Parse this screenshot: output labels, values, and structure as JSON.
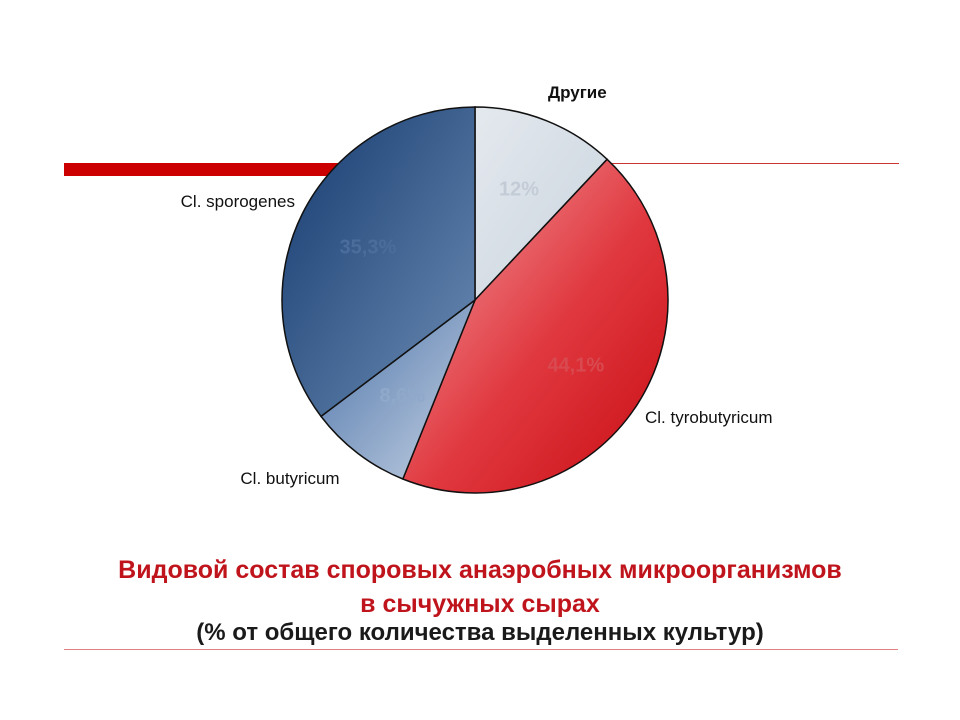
{
  "chart_data": {
    "type": "pie",
    "categories": [
      "Другие",
      "Cl. tyrobutyricum",
      "Cl. butyricum",
      "Cl. sporogenes"
    ],
    "values": [
      12,
      44.1,
      8.6,
      35.3
    ],
    "value_labels": [
      "12%",
      "44,1%",
      "8,6%",
      "35,3%"
    ],
    "title": "Видовой состав споровых анаэробных микроорганизмов",
    "colors": [
      "#d5dde6",
      "#d9202a",
      "#6d8fbd",
      "#2a4f82"
    ]
  },
  "caption": {
    "line1": "Видовой состав споровых анаэробных микроорганизмов",
    "line2": "в сычужных  сырах",
    "line3": "(% от общего количества выделенных культур)"
  }
}
